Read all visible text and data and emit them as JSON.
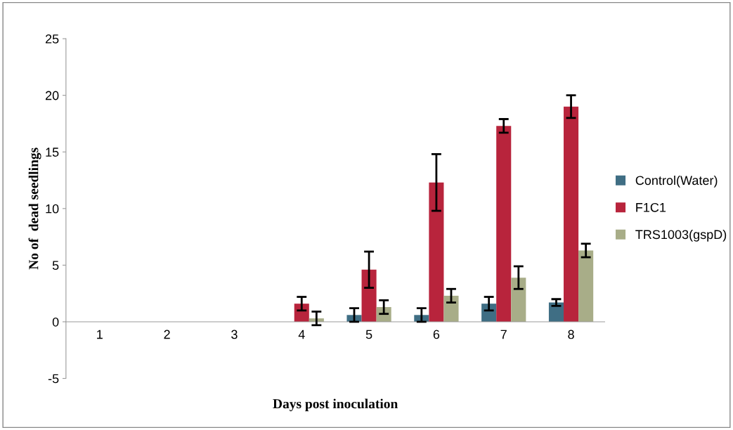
{
  "chart_data": {
    "type": "bar",
    "xlabel": "Days post inoculation",
    "ylabel": "No of  dead seedlings",
    "categories": [
      "1",
      "2",
      "3",
      "4",
      "5",
      "6",
      "7",
      "8"
    ],
    "series": [
      {
        "name": "Control(Water)",
        "color": "#3f6e84",
        "values": [
          0,
          0,
          0,
          0,
          0.6,
          0.6,
          1.6,
          1.7
        ],
        "errors": [
          null,
          null,
          null,
          null,
          0.6,
          0.6,
          0.6,
          0.3
        ]
      },
      {
        "name": "F1C1",
        "color": "#b8243c",
        "values": [
          0,
          0,
          0,
          1.6,
          4.6,
          12.3,
          17.3,
          19.0
        ],
        "errors": [
          null,
          null,
          null,
          0.6,
          1.6,
          2.5,
          0.6,
          1.0
        ]
      },
      {
        "name": "TRS1003(gspD)",
        "color": "#a8ad88",
        "values": [
          0,
          0,
          0,
          0.3,
          1.3,
          2.3,
          3.9,
          6.3
        ],
        "errors": [
          null,
          null,
          null,
          0.6,
          0.6,
          0.6,
          1.0,
          0.6
        ]
      }
    ],
    "ylim": [
      -5,
      25
    ],
    "yticks": [
      -5,
      0,
      5,
      10,
      15,
      20,
      25
    ],
    "grid": false,
    "legend": "right"
  }
}
